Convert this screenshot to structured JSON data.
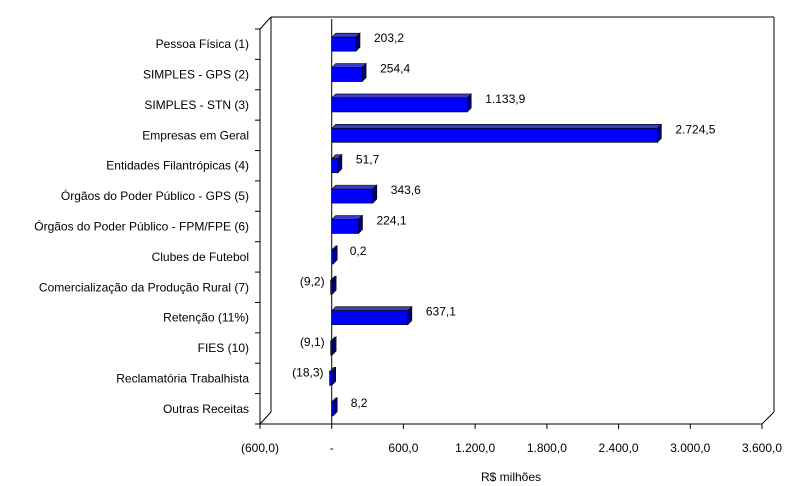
{
  "chart_data": {
    "type": "bar",
    "orientation": "horizontal",
    "style": "3d",
    "categories": [
      "Pessoa Física (1)",
      "SIMPLES - GPS (2)",
      "SIMPLES - STN (3)",
      "Empresas em Geral",
      "Entidades Filantrópicas (4)",
      "Órgãos do Poder Público - GPS (5)",
      "Órgãos do Poder Público - FPM/FPE (6)",
      "Clubes de Futebol",
      "Comercialização da Produção Rural (7)",
      "Retenção (11%)",
      "FIES (10)",
      "Reclamatória Trabalhista",
      "Outras Receitas"
    ],
    "values": [
      203.2,
      254.4,
      1133.9,
      2724.5,
      51.7,
      343.6,
      224.1,
      0.2,
      -9.2,
      637.1,
      -9.1,
      -18.3,
      8.2
    ],
    "data_labels": [
      "203,2",
      "254,4",
      "1.133,9",
      "2.724,5",
      "51,7",
      "343,6",
      "224,1",
      "0,2",
      "(9,2)",
      "637,1",
      "(9,1)",
      "(18,3)",
      "8,2"
    ],
    "xlabel": "R$ milhões",
    "xlim": [
      -600,
      3600
    ],
    "xticks": [
      -600,
      0,
      600,
      1200,
      1800,
      2400,
      3000,
      3600
    ],
    "xtick_labels": [
      "(600,0)",
      "-",
      "600,0",
      "1.200,0",
      "1.800,0",
      "2.400,0",
      "3.000,0",
      "3.600,0"
    ],
    "grid": false,
    "legend": "none",
    "colors": {
      "bar_front": "#0000FF",
      "bar_top": "#3B3BC4",
      "bar_side": "#00007A",
      "axis": "#000000"
    }
  }
}
